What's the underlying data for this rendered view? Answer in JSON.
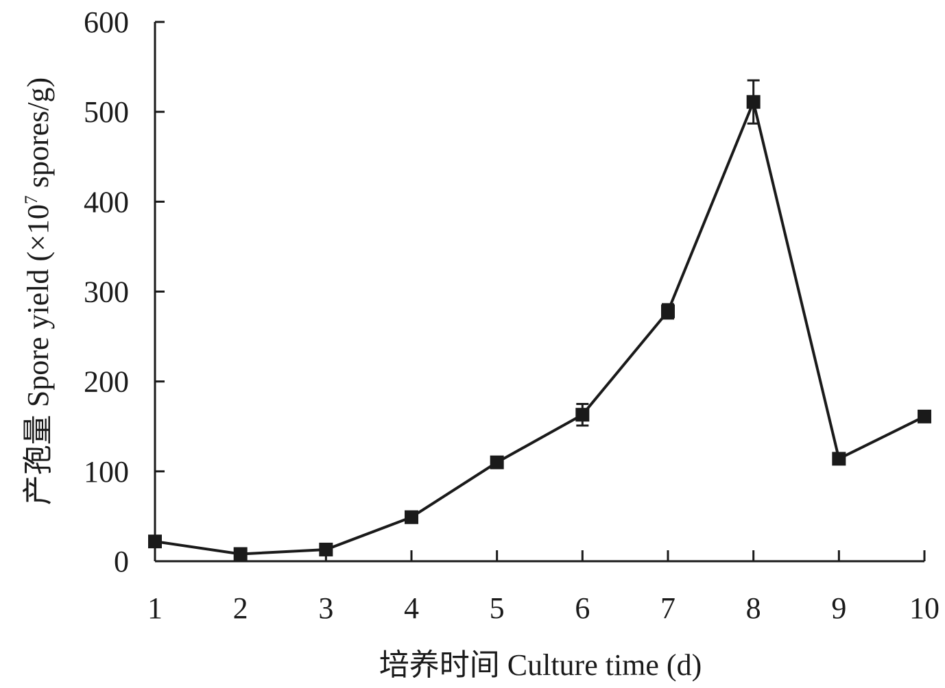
{
  "chart_data": {
    "type": "line",
    "title": "",
    "xlabel": "培养时间 Culture time (d)",
    "ylabel": {
      "prefix": "产孢量 Spore yield (×10",
      "superscript": "7",
      "suffix": " spores/g)"
    },
    "xlim": [
      1,
      10
    ],
    "ylim": [
      0,
      600
    ],
    "x_ticks": [
      1,
      2,
      3,
      4,
      5,
      6,
      7,
      8,
      9,
      10
    ],
    "y_ticks": [
      0,
      100,
      200,
      300,
      400,
      500,
      600
    ],
    "grid": false,
    "legend": "none",
    "marker": "square",
    "color": "#1a1a1a",
    "series": [
      {
        "x": [
          1,
          2,
          3,
          4,
          5,
          6,
          7,
          8,
          9,
          10
        ],
        "values": [
          22,
          8,
          13,
          49,
          110,
          163,
          278,
          511,
          114,
          161
        ],
        "errors": [
          3,
          2,
          3,
          6,
          4,
          12,
          8,
          24,
          5,
          4
        ]
      }
    ]
  }
}
